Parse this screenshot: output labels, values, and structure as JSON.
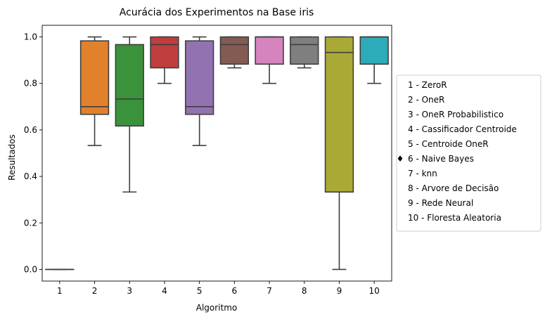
{
  "chart_data": {
    "type": "boxplot",
    "title": "Acurácia dos Experimentos na Base iris",
    "xlabel": "Algoritmo",
    "ylabel": "Resultados",
    "ylim": [
      -0.05,
      1.05
    ],
    "yticks": [
      0.0,
      0.2,
      0.4,
      0.6,
      0.8,
      1.0
    ],
    "ytick_labels": [
      "0.0",
      "0.2",
      "0.4",
      "0.6",
      "0.8",
      "1.0"
    ],
    "categories": [
      "1",
      "2",
      "3",
      "4",
      "5",
      "6",
      "7",
      "8",
      "9",
      "10"
    ],
    "boxes": [
      {
        "category": "1",
        "min": 0.0,
        "q1": 0.0,
        "median": 0.0,
        "q3": 0.0,
        "max": 0.0,
        "color": "#3274a1"
      },
      {
        "category": "2",
        "min": 0.533,
        "q1": 0.667,
        "median": 0.7,
        "q3": 0.983,
        "max": 1.0,
        "color": "#e1812c"
      },
      {
        "category": "3",
        "min": 0.333,
        "q1": 0.617,
        "median": 0.733,
        "q3": 0.967,
        "max": 1.0,
        "color": "#3a923a"
      },
      {
        "category": "4",
        "min": 0.8,
        "q1": 0.867,
        "median": 0.967,
        "q3": 1.0,
        "max": 1.0,
        "color": "#c03d3e"
      },
      {
        "category": "5",
        "min": 0.533,
        "q1": 0.667,
        "median": 0.7,
        "q3": 0.983,
        "max": 1.0,
        "color": "#9372b2"
      },
      {
        "category": "6",
        "min": 0.867,
        "q1": 0.883,
        "median": 0.967,
        "q3": 1.0,
        "max": 1.0,
        "color": "#845b53"
      },
      {
        "category": "7",
        "min": 0.8,
        "q1": 0.883,
        "median": 1.0,
        "q3": 1.0,
        "max": 1.0,
        "color": "#d684bd"
      },
      {
        "category": "8",
        "min": 0.867,
        "q1": 0.883,
        "median": 0.967,
        "q3": 1.0,
        "max": 1.0,
        "color": "#7f7f7f"
      },
      {
        "category": "9",
        "min": 0.0,
        "q1": 0.333,
        "median": 0.933,
        "q3": 1.0,
        "max": 1.0,
        "color": "#a9aa35"
      },
      {
        "category": "10",
        "min": 0.8,
        "q1": 0.883,
        "median": 1.0,
        "q3": 1.0,
        "max": 1.0,
        "color": "#2eabb8"
      }
    ],
    "legend": {
      "placement": "right",
      "marker_symbol": "♦",
      "entries": [
        "1 - ZeroR",
        "2 - OneR",
        "3 - OneR Probabilistico",
        "4 - Cassificador Centroide",
        "5 - Centroide OneR",
        "6 - Naive Bayes",
        "7 - knn",
        "8 - Arvore de Decisão",
        "9 - Rede Neural",
        "10 - Floresta Aleatoria"
      ]
    },
    "grid": false
  }
}
